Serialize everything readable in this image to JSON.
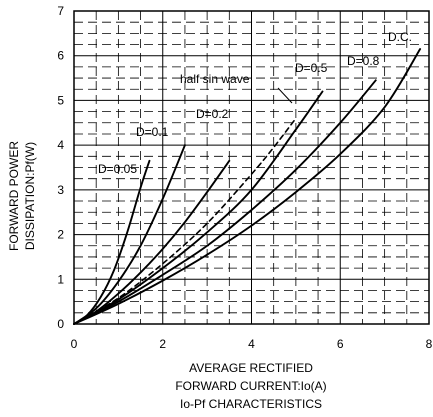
{
  "chart_data": {
    "type": "line",
    "title": "Io-Pf CHARACTERISTICS",
    "xlabel_lines": [
      "AVERAGE RECTIFIED",
      "FORWARD CURRENT:Io(A)"
    ],
    "ylabel_lines": [
      "FORWARD POWER",
      "DISSIPATION:Pf(W)"
    ],
    "xlim": [
      0,
      8
    ],
    "ylim": [
      0,
      7
    ],
    "x_ticks": [
      0,
      2,
      4,
      6,
      8
    ],
    "y_ticks": [
      0,
      1,
      2,
      3,
      4,
      5,
      6,
      7
    ],
    "grid": "dashed minor grid (0.5 A x 0.25 W), solid major lines every 2 A / 1 W",
    "series": [
      {
        "name": "D=0.05",
        "dash": false,
        "x": [
          0,
          0.3,
          0.6,
          0.9,
          1.2,
          1.5,
          1.7
        ],
        "y": [
          0,
          0.2,
          0.6,
          1.2,
          2.05,
          3.05,
          3.65
        ]
      },
      {
        "name": "D=0.1",
        "dash": false,
        "x": [
          0,
          0.5,
          1.0,
          1.5,
          2.0,
          2.5
        ],
        "y": [
          0,
          0.35,
          0.95,
          1.75,
          2.8,
          4.0
        ]
      },
      {
        "name": "D=0.2",
        "dash": false,
        "x": [
          0,
          0.5,
          1.0,
          1.5,
          2.0,
          2.5,
          3.0,
          3.5
        ],
        "y": [
          0,
          0.28,
          0.68,
          1.15,
          1.68,
          2.28,
          2.95,
          3.65
        ]
      },
      {
        "name": "half sin wave",
        "dash": true,
        "x": [
          0,
          1,
          2,
          3,
          4,
          4.5,
          5.0
        ],
        "y": [
          0,
          0.58,
          1.35,
          2.25,
          3.35,
          3.95,
          4.6
        ]
      },
      {
        "name": "D=0.5",
        "dash": false,
        "x": [
          0,
          1,
          2,
          3,
          4,
          5,
          5.6
        ],
        "y": [
          0,
          0.55,
          1.25,
          2.05,
          3.0,
          4.35,
          5.2
        ]
      },
      {
        "name": "D=0.8",
        "dash": false,
        "x": [
          0,
          1,
          2,
          3,
          4,
          5,
          6,
          6.8
        ],
        "y": [
          0,
          0.5,
          1.1,
          1.75,
          2.55,
          3.45,
          4.5,
          5.45
        ]
      },
      {
        "name": "D.C.",
        "dash": false,
        "x": [
          0,
          1,
          2,
          3,
          4,
          5,
          6,
          7,
          7.8
        ],
        "y": [
          0,
          0.45,
          0.97,
          1.55,
          2.2,
          2.95,
          3.8,
          4.85,
          6.15
        ]
      }
    ],
    "annotations": [
      "D=0.05",
      "D=0.1",
      "D=0.2",
      "half sin wave",
      "D=0.5",
      "D=0.8",
      "D.C."
    ]
  }
}
